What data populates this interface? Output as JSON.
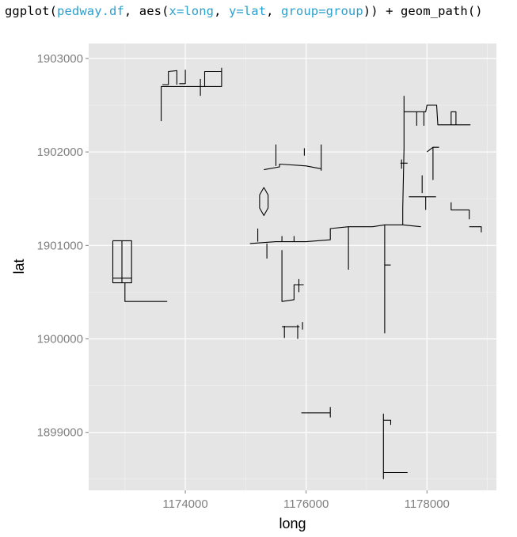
{
  "code": {
    "parts": [
      {
        "text": "ggplot(",
        "kind": "plain"
      },
      {
        "text": "pedway.df",
        "kind": "arg"
      },
      {
        "text": ", aes(",
        "kind": "plain"
      },
      {
        "text": "x=long",
        "kind": "arg"
      },
      {
        "text": ", ",
        "kind": "plain"
      },
      {
        "text": "y=lat",
        "kind": "arg"
      },
      {
        "text": ", ",
        "kind": "plain"
      },
      {
        "text": "group=group",
        "kind": "arg"
      },
      {
        "text": ")) + geom_path()",
        "kind": "plain"
      }
    ]
  },
  "colors": {
    "panel": "#e5e5e5",
    "grid_major": "#ffffff",
    "grid_minor": "#f2f2f2",
    "tick_text": "#7f7f7f",
    "code_arg": "#2aa0d0"
  },
  "chart_data": {
    "type": "line",
    "xlabel": "long",
    "ylabel": "lat",
    "xlim": [
      1172400,
      1179150
    ],
    "ylim": [
      1898380,
      1903160
    ],
    "x_ticks": [
      1174000,
      1176000,
      1178000
    ],
    "x_tick_labels": [
      "1174000",
      "1176000",
      "1178000"
    ],
    "y_ticks": [
      1899000,
      1900000,
      1901000,
      1902000,
      1903000
    ],
    "y_tick_labels": [
      "1899000",
      "1900000",
      "1901000",
      "1902000",
      "1903000"
    ],
    "grid": true,
    "series": [
      {
        "points": [
          [
            1172800,
            1901050
          ],
          [
            1173110,
            1901050
          ],
          [
            1173110,
            1900600
          ],
          [
            1172800,
            1900600
          ],
          [
            1172800,
            1901050
          ]
        ]
      },
      {
        "points": [
          [
            1172950,
            1901050
          ],
          [
            1172950,
            1900600
          ]
        ]
      },
      {
        "points": [
          [
            1172800,
            1900650
          ],
          [
            1173110,
            1900650
          ]
        ]
      },
      {
        "points": [
          [
            1173000,
            1900600
          ],
          [
            1173000,
            1900400
          ],
          [
            1173700,
            1900400
          ]
        ]
      },
      {
        "points": [
          [
            1173600,
            1902330
          ],
          [
            1173600,
            1902700
          ],
          [
            1174600,
            1902700
          ],
          [
            1174600,
            1902900
          ]
        ]
      },
      {
        "points": [
          [
            1173620,
            1902720
          ],
          [
            1173720,
            1902720
          ],
          [
            1173720,
            1902860
          ],
          [
            1173860,
            1902870
          ],
          [
            1173860,
            1902720
          ]
        ]
      },
      {
        "points": [
          [
            1173900,
            1902730
          ],
          [
            1174000,
            1902730
          ],
          [
            1174000,
            1902880
          ]
        ]
      },
      {
        "points": [
          [
            1174250,
            1902780
          ],
          [
            1174250,
            1902600
          ]
        ]
      },
      {
        "points": [
          [
            1174320,
            1902700
          ],
          [
            1174320,
            1902860
          ],
          [
            1174600,
            1902860
          ]
        ]
      },
      {
        "points": [
          [
            1175070,
            1901020
          ],
          [
            1175500,
            1901040
          ],
          [
            1176000,
            1901040
          ],
          [
            1176400,
            1901060
          ],
          [
            1176400,
            1901180
          ],
          [
            1176700,
            1901200
          ],
          [
            1177100,
            1901200
          ],
          [
            1177300,
            1901220
          ],
          [
            1177600,
            1901220
          ],
          [
            1177900,
            1901200
          ]
        ]
      },
      {
        "points": [
          [
            1175200,
            1901040
          ],
          [
            1175200,
            1901180
          ]
        ]
      },
      {
        "points": [
          [
            1175600,
            1901040
          ],
          [
            1175600,
            1901100
          ]
        ]
      },
      {
        "points": [
          [
            1175800,
            1901040
          ],
          [
            1175800,
            1901100
          ]
        ]
      },
      {
        "points": [
          [
            1175350,
            1901020
          ],
          [
            1175350,
            1900860
          ]
        ]
      },
      {
        "points": [
          [
            1176700,
            1901200
          ],
          [
            1176700,
            1900740
          ]
        ]
      },
      {
        "points": [
          [
            1177300,
            1901220
          ],
          [
            1177300,
            1900060
          ]
        ]
      },
      {
        "points": [
          [
            1177300,
            1900790
          ],
          [
            1177400,
            1900790
          ]
        ]
      },
      {
        "points": [
          [
            1177600,
            1901220
          ],
          [
            1177600,
            1901400
          ],
          [
            1177620,
            1902040
          ],
          [
            1177620,
            1902600
          ]
        ]
      },
      {
        "points": [
          [
            1177560,
            1901880
          ],
          [
            1177680,
            1901880
          ]
        ]
      },
      {
        "points": [
          [
            1177580,
            1901920
          ],
          [
            1177580,
            1901820
          ]
        ]
      },
      {
        "points": [
          [
            1177620,
            1902430
          ],
          [
            1177980,
            1902430
          ],
          [
            1178000,
            1902500
          ],
          [
            1178160,
            1902500
          ],
          [
            1178180,
            1902290
          ],
          [
            1178720,
            1902290
          ]
        ]
      },
      {
        "points": [
          [
            1177830,
            1902430
          ],
          [
            1177830,
            1902280
          ]
        ]
      },
      {
        "points": [
          [
            1177950,
            1902430
          ],
          [
            1177950,
            1902280
          ]
        ]
      },
      {
        "points": [
          [
            1178400,
            1902290
          ],
          [
            1178400,
            1902430
          ],
          [
            1178480,
            1902430
          ],
          [
            1178480,
            1902290
          ]
        ]
      },
      {
        "points": [
          [
            1177700,
            1901520
          ],
          [
            1178150,
            1901520
          ]
        ]
      },
      {
        "points": [
          [
            1177980,
            1901520
          ],
          [
            1177980,
            1901380
          ]
        ]
      },
      {
        "points": [
          [
            1177920,
            1901750
          ],
          [
            1177920,
            1901560
          ]
        ]
      },
      {
        "points": [
          [
            1178000,
            1902000
          ],
          [
            1178100,
            1902050
          ],
          [
            1178200,
            1902050
          ]
        ]
      },
      {
        "points": [
          [
            1178100,
            1902050
          ],
          [
            1178100,
            1901700
          ]
        ]
      },
      {
        "points": [
          [
            1178400,
            1901460
          ],
          [
            1178400,
            1901380
          ],
          [
            1178700,
            1901380
          ],
          [
            1178700,
            1901280
          ]
        ]
      },
      {
        "points": [
          [
            1178700,
            1901200
          ],
          [
            1178900,
            1901200
          ],
          [
            1178900,
            1901140
          ]
        ]
      },
      {
        "points": [
          [
            1175300,
            1901810
          ],
          [
            1175560,
            1901840
          ],
          [
            1175560,
            1901870
          ],
          [
            1176000,
            1901850
          ],
          [
            1176250,
            1901820
          ]
        ]
      },
      {
        "points": [
          [
            1175500,
            1902080
          ],
          [
            1175500,
            1901850
          ]
        ]
      },
      {
        "points": [
          [
            1175970,
            1901960
          ],
          [
            1175970,
            1902040
          ]
        ]
      },
      {
        "points": [
          [
            1176250,
            1902080
          ],
          [
            1176250,
            1901800
          ]
        ]
      },
      {
        "points": [
          [
            1175300,
            1901620
          ],
          [
            1175370,
            1901540
          ],
          [
            1175370,
            1901400
          ],
          [
            1175300,
            1901320
          ],
          [
            1175230,
            1901400
          ],
          [
            1175230,
            1901540
          ],
          [
            1175300,
            1901620
          ]
        ]
      },
      {
        "points": [
          [
            1175600,
            1900950
          ],
          [
            1175600,
            1900400
          ],
          [
            1175800,
            1900420
          ],
          [
            1175800,
            1900580
          ],
          [
            1175960,
            1900580
          ]
        ]
      },
      {
        "points": [
          [
            1175880,
            1900640
          ],
          [
            1175880,
            1900500
          ]
        ]
      },
      {
        "points": [
          [
            1175600,
            1900130
          ],
          [
            1175890,
            1900130
          ]
        ]
      },
      {
        "points": [
          [
            1175640,
            1900140
          ],
          [
            1175640,
            1900010
          ]
        ]
      },
      {
        "points": [
          [
            1175860,
            1900150
          ],
          [
            1175860,
            1900000
          ]
        ]
      },
      {
        "points": [
          [
            1175940,
            1900180
          ],
          [
            1175940,
            1900100
          ]
        ]
      },
      {
        "points": [
          [
            1175920,
            1899210
          ],
          [
            1176400,
            1899210
          ]
        ]
      },
      {
        "points": [
          [
            1176400,
            1899270
          ],
          [
            1176400,
            1899160
          ]
        ]
      },
      {
        "points": [
          [
            1177280,
            1899200
          ],
          [
            1177280,
            1898500
          ]
        ]
      },
      {
        "points": [
          [
            1177280,
            1898570
          ],
          [
            1177680,
            1898570
          ]
        ]
      },
      {
        "points": [
          [
            1177280,
            1899130
          ],
          [
            1177400,
            1899130
          ],
          [
            1177400,
            1899080
          ]
        ]
      }
    ]
  }
}
